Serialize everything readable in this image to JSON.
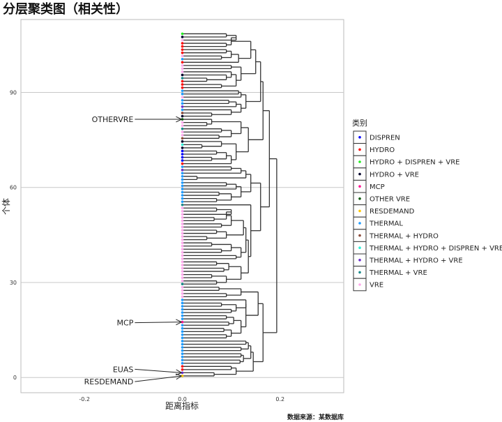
{
  "chart_data": {
    "type": "dendrogram",
    "title": "分层聚类图（相关性）",
    "xlabel": "距离指标",
    "ylabel": "个体",
    "caption": "数据来源：某数据库",
    "xlim": [
      -0.33,
      0.33
    ],
    "ylim": [
      -4.8,
      113
    ],
    "xticks": [
      -0.2,
      0.0,
      0.2
    ],
    "xtick_labels": [
      "-0.2",
      "0.0",
      "0.2"
    ],
    "yticks": [
      0,
      30,
      60,
      90
    ],
    "ytick_labels": [
      "0",
      "30",
      "60",
      "90"
    ],
    "grid": "horizontal major",
    "legend": {
      "title": "类别",
      "placement": "right",
      "entries": [
        {
          "label": "DISPREN",
          "color": "#0000ff"
        },
        {
          "label": "HYDRO",
          "color": "#ff0000"
        },
        {
          "label": "HYDRO + DISPREN + VRE",
          "color": "#22ee22"
        },
        {
          "label": "HYDRO + VRE",
          "color": "#00002a"
        },
        {
          "label": "MCP",
          "color": "#ff1493"
        },
        {
          "label": "OTHER VRE",
          "color": "#0a5a0a"
        },
        {
          "label": "RESDEMAND",
          "color": "#ffc800"
        },
        {
          "label": "THERMAL",
          "color": "#1e9bff"
        },
        {
          "label": "THERMAL + HYDRO",
          "color": "#8b4a3a"
        },
        {
          "label": "THERMAL + HYDRO + DISPREN + VRE",
          "color": "#2ef0d8"
        },
        {
          "label": "THERMAL + HYDRO + VRE",
          "color": "#6a2ccc"
        },
        {
          "label": "THERMAL + VRE",
          "color": "#1a8a8a"
        },
        {
          "label": "VRE",
          "color": "#ffa8ec"
        }
      ]
    },
    "leaf_categories": [
      "RESDEMAND",
      "THERMAL + HYDRO + VRE",
      "HYDRO",
      "HYDRO",
      "THERMAL",
      "THERMAL",
      "THERMAL",
      "THERMAL",
      "THERMAL",
      "THERMAL",
      "THERMAL",
      "THERMAL",
      "THERMAL",
      "THERMAL",
      "THERMAL",
      "THERMAL",
      "THERMAL",
      "MCP",
      "THERMAL",
      "THERMAL",
      "THERMAL",
      "THERMAL",
      "THERMAL",
      "THERMAL",
      "THERMAL",
      "VRE",
      "VRE",
      "VRE",
      "VRE",
      "THERMAL + VRE",
      "VRE",
      "VRE",
      "VRE",
      "VRE",
      "VRE",
      "VRE",
      "VRE",
      "VRE",
      "VRE",
      "VRE",
      "VRE",
      "VRE",
      "VRE",
      "VRE",
      "VRE",
      "VRE",
      "VRE",
      "VRE",
      "VRE",
      "VRE",
      "VRE",
      "VRE",
      "VRE",
      "VRE",
      "THERMAL + VRE",
      "THERMAL",
      "THERMAL",
      "THERMAL",
      "THERMAL",
      "THERMAL",
      "THERMAL",
      "THERMAL",
      "THERMAL",
      "THERMAL",
      "THERMAL",
      "THERMAL + HYDRO + VRE",
      "THERMAL",
      "HYDRO",
      "DISPREN",
      "DISPREN",
      "DISPREN",
      "DISPREN",
      "HYDRO + VRE",
      "THERMAL + HYDRO + DISPREN + VRE",
      "HYDRO + VRE",
      "THERMAL + HYDRO",
      "VRE",
      "VRE",
      "THERMAL + VRE",
      "VRE",
      "VRE",
      "OTHER VRE",
      "HYDRO + VRE",
      "THERMAL + HYDRO",
      "THERMAL",
      "THERMAL + HYDRO + VRE",
      "THERMAL",
      "THERMAL",
      "VRE",
      "THERMAL",
      "THERMAL",
      "HYDRO",
      "HYDRO",
      "HYDRO",
      "THERMAL + VRE",
      "HYDRO + VRE",
      "VRE",
      "VRE",
      "VRE",
      "HYDRO",
      "THERMAL",
      "VRE",
      "HYDRO",
      "HYDRO",
      "HYDRO",
      "HYDRO",
      "VRE",
      "HYDRO + VRE",
      "HYDRO + DISPREN + VRE"
    ],
    "tree": [
      0.193,
      [
        0.165,
        [
          0.145,
          [
            0.11,
            [
              0.1,
              2,
              3
            ],
            [
              0.065,
              0,
              1
            ]
          ],
          [
            0.14,
            [
              0.125,
              [
                0.118,
                4,
                5
              ],
              [
                0.12,
                6,
                7
              ]
            ],
            [
              0.135,
              [
                0.12,
                8,
                9
              ],
              [
                0.13,
                10,
                11
              ]
            ]
          ]
        ],
        [
          0.155,
          [
            0.13,
            [
              0.12,
              [
                0.1,
                [
                  0.09,
                  12,
                  13
                ],
                [
                  0.085,
                  14,
                  15
                ]
              ],
              [
                0.105,
                [
                  0.095,
                  16,
                  17
                ],
                [
                  0.09,
                  18,
                  19
                ]
              ]
            ],
            [
              0.13,
              [
                0.11,
                [
                  0.1,
                  20,
                  21
                ],
                [
                  0.08,
                  22,
                  23
                ]
              ],
              24
            ]
          ],
          [
            0.12,
            [
              0.09,
              25,
              26
            ],
            [
              0.075,
              27,
              28
            ]
          ]
        ]
      ],
      [
        0.178,
        [
          0.165,
          [
            0.16,
            [
              0.13,
              [
                0.12,
                [
                  0.1,
                  [
                    0.06,
                    82,
                    83
                  ],
                  84
                ],
                [
                  0.11,
                  85,
                  [
                    0.095,
                    86,
                    87
                  ]
                ]
              ],
              [
                0.12,
                88,
                [
                  0.115,
                  89,
                  90
                ]
              ]
            ],
            [
              0.15,
              [
                0.12,
                [
                  0.11,
                  [
                    0.08,
                    91,
                    92
                  ],
                  [
                    0.1,
                    [
                      0.09,
                      [
                        0.05,
                        93,
                        94
                      ],
                      95
                    ],
                    96
                  ]
                ],
                [
                  0.1,
                  97,
                  98
                ]
              ],
              [
                0.14,
                [
                  0.115,
                  99,
                  [
                    0.1,
                    [
                      0.08,
                      100,
                      101
                    ],
                    [
                      0.09,
                      102,
                      103
                    ]
                  ]
                ],
                [
                  0.1,
                  [
                    0.09,
                    104,
                    105
                  ],
                  [
                    0.11,
                    106,
                    [
                      0.09,
                      107,
                      108
                    ]
                  ]
                ]
              ]
            ]
          ],
          [
            0.135,
            [
              0.11,
              [
                0.1,
                67,
                [
                  0.09,
                  [
                    0.06,
                    68,
                    69
                  ],
                  [
                    0.07,
                    70,
                    71
                  ]
                ]
              ],
              [
                0.08,
                [
                  0.04,
                  72,
                  73
                ],
                74
              ]
            ],
            [
              0.12,
              [
                0.1,
                [
                  0.075,
                  75,
                  76
                ],
                [
                  0.08,
                  77,
                  78
                ]
              ],
              [
                0.06,
                [
                  0.05,
                  79,
                  80
                ],
                81
              ]
            ]
          ]
        ],
        [
          0.16,
          [
            0.14,
            [
              0.12,
              [
                0.1,
                [
                  0.07,
                  55,
                  56
                ],
                [
                  0.075,
                  57,
                  58
                ]
              ],
              [
                0.11,
                59,
                [
                  0.09,
                  60,
                  61
                ]
              ]
            ],
            [
              0.13,
              [
                0.03,
                62,
                63
              ],
              [
                0.12,
                64,
                [
                  0.1,
                  65,
                  66
                ]
              ]
            ]
          ],
          [
            0.14,
            [
              0.135,
              [
                0.12,
                [
                  0.09,
                  [
                    0.07,
                    29,
                    30
                  ],
                  [
                    0.06,
                    31,
                    32
                  ]
                ],
                [
                  0.095,
                  [
                    0.085,
                    33,
                    34
                  ],
                  [
                    0.07,
                    35,
                    36
                  ]
                ]
              ],
              [
                0.13,
                [
                  0.12,
                  [
                    0.11,
                    37,
                    38
                  ],
                  [
                    0.1,
                    [
                      0.08,
                      39,
                      40
                    ],
                    [
                      0.06,
                      41,
                      42
                    ]
                  ]
                ],
                [
                  0.125,
                  [
                    0.09,
                    [
                      0.05,
                      43,
                      44
                    ],
                    [
                      0.07,
                      45,
                      46
                    ]
                  ],
                  [
                    0.1,
                    [
                      0.08,
                      47,
                      48
                    ],
                    [
                      0.09,
                      [
                        0.065,
                        49,
                        50
                      ],
                      [
                        0.1,
                        51,
                        [
                          0.07,
                          52,
                          53
                        ]
                      ]
                    ]
                  ]
                ]
              ]
            ],
            54
          ]
        ]
      ]
    ],
    "annotations": [
      {
        "label": "OTHERVRE",
        "leaf": 81,
        "text_x": -0.1,
        "text_y": 81.5
      },
      {
        "label": "MCP",
        "leaf": 17,
        "text_x": -0.1,
        "text_y": 17.3
      },
      {
        "label": "EUAS",
        "leaf": 1,
        "text_x": -0.1,
        "text_y": 2.6
      },
      {
        "label": "RESDEMAND",
        "leaf": 0,
        "text_x": -0.1,
        "text_y": -1.3
      }
    ]
  }
}
